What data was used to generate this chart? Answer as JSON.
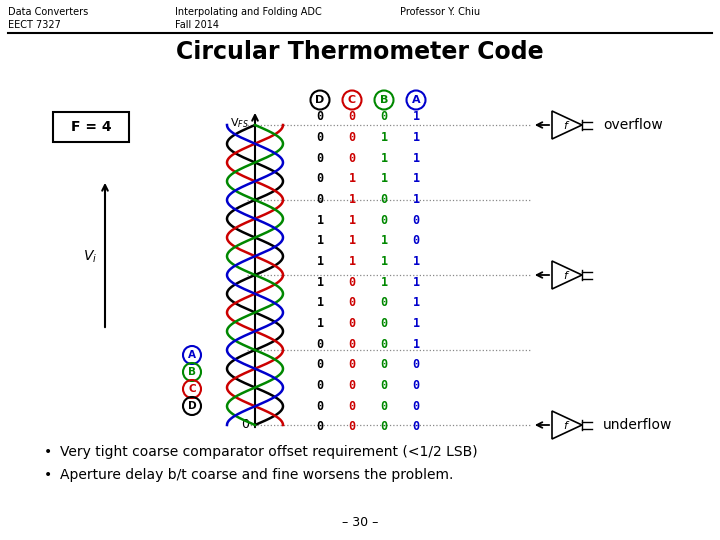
{
  "header_left": "Data Converters\nEECT 7327",
  "header_center": "Interpolating and Folding ADC\nFall 2014",
  "header_right": "Professor Y. Chiu",
  "title": "Circular Thermometer Code",
  "f_label": "F = 4",
  "vi_label": "V$_i$",
  "vfs_label": "V$_{FS}$",
  "zero_label": "0",
  "overflow_label": "overflow",
  "underflow_label": "underflow",
  "bullet1": "Very tight coarse comparator offset requirement (<1/2 LSB)",
  "bullet2": "Aperture delay b/t coarse and fine worsens the problem.",
  "page_number": "– 30 –",
  "colors": {
    "black": "#000000",
    "blue": "#0000cc",
    "red": "#cc0000",
    "green": "#008800",
    "bg": "#ffffff",
    "gray": "#888888"
  },
  "col_labels": [
    "D",
    "C",
    "B",
    "A"
  ],
  "col_colors": [
    "#000000",
    "#cc0000",
    "#008800",
    "#0000cc"
  ],
  "thermo_bits": [
    [
      "0",
      "0",
      "0",
      "1"
    ],
    [
      "0",
      "0",
      "1",
      "1"
    ],
    [
      "0",
      "0",
      "1",
      "1"
    ],
    [
      "0",
      "1",
      "1",
      "1"
    ],
    [
      "0",
      "1",
      "0",
      "1"
    ],
    [
      "1",
      "1",
      "0",
      "0"
    ],
    [
      "1",
      "1",
      "1",
      "0"
    ],
    [
      "1",
      "1",
      "1",
      "1"
    ],
    [
      "1",
      "0",
      "1",
      "1"
    ],
    [
      "1",
      "0",
      "0",
      "1"
    ],
    [
      "1",
      "0",
      "0",
      "1"
    ],
    [
      "0",
      "0",
      "0",
      "1"
    ],
    [
      "0",
      "0",
      "0",
      "0"
    ],
    [
      "0",
      "0",
      "0",
      "0"
    ],
    [
      "0",
      "0",
      "0",
      "0"
    ],
    [
      "0",
      "0",
      "0",
      "0"
    ]
  ]
}
